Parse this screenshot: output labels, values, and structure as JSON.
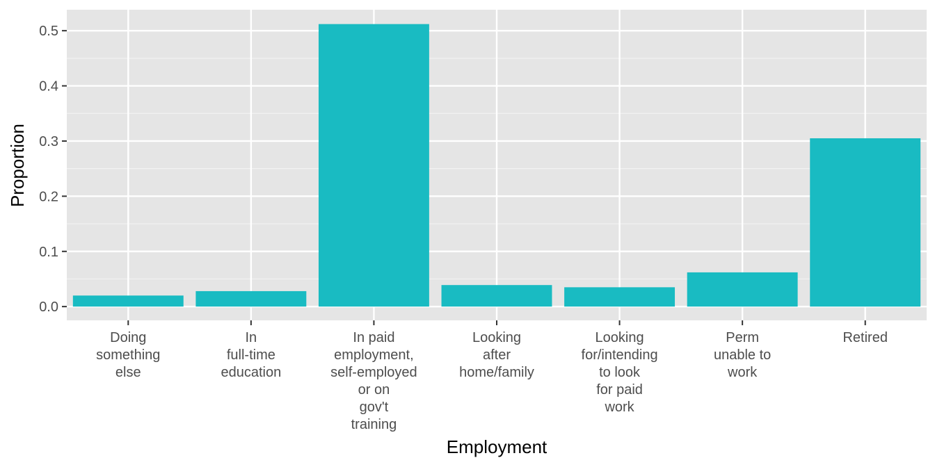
{
  "chart_data": {
    "type": "bar",
    "categories": [
      [
        "Doing",
        "something",
        "else"
      ],
      [
        "In",
        "full-time",
        "education"
      ],
      [
        "In paid",
        "employment,",
        "self-employed",
        "or on",
        "gov't",
        "training"
      ],
      [
        "Looking",
        "after",
        "home/family"
      ],
      [
        "Looking",
        "for/intending",
        "to look",
        "for paid",
        "work"
      ],
      [
        "Perm",
        "unable to",
        "work"
      ],
      [
        "Retired"
      ]
    ],
    "values": [
      0.02,
      0.028,
      0.512,
      0.039,
      0.035,
      0.062,
      0.305
    ],
    "xlabel": "Employment",
    "ylabel": "Proportion",
    "ylim": [
      -0.025,
      0.538
    ],
    "yticks": [
      0.0,
      0.1,
      0.2,
      0.3,
      0.4,
      0.5
    ],
    "ytick_labels": [
      "0.0",
      "0.1",
      "0.2",
      "0.3",
      "0.4",
      "0.5"
    ],
    "grid": true,
    "colors": {
      "bar": "#19BBC2",
      "panel": "#E5E5E5",
      "grid_major": "#FFFFFF",
      "grid_minor": "#F2F2F2",
      "tick": "#333333"
    }
  }
}
